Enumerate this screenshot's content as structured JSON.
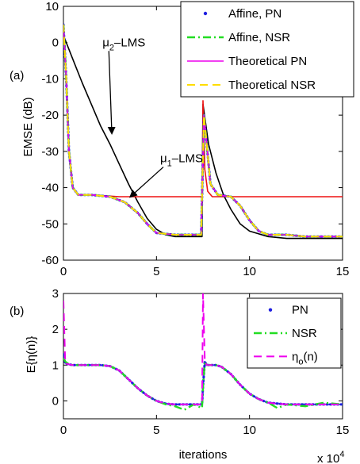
{
  "chart_data": [
    {
      "type": "line",
      "panel_label": "(a)",
      "xlabel": "",
      "ylabel": "EMSE (dB)",
      "xlim": [
        0,
        15
      ],
      "ylim": [
        -60,
        10
      ],
      "xticks": [
        0,
        5,
        10,
        15
      ],
      "yticks": [
        10,
        0,
        -10,
        -20,
        -30,
        -40,
        -50,
        -60
      ],
      "xtick_labels": [
        "0",
        "5",
        "10",
        "15"
      ],
      "ytick_labels": [
        "10",
        "0",
        "-10",
        "-20",
        "-30",
        "-40",
        "-50",
        "-60"
      ],
      "legend_position": "top-right",
      "series": [
        {
          "name": "Affine, PN",
          "color": "#1f1fe0",
          "style": "dots",
          "x": [
            0,
            0.15,
            0.3,
            0.5,
            0.8,
            1.5,
            2.5,
            3.3,
            4.0,
            4.5,
            5.0,
            6.0,
            7.0,
            7.4,
            7.55,
            7.7,
            7.9,
            8.3,
            9.0,
            9.5,
            10.0,
            10.5,
            11.0,
            12,
            13,
            14,
            15
          ],
          "y": [
            5,
            -10,
            -30,
            -40,
            -42,
            -42,
            -42.5,
            -44,
            -47,
            -50,
            -52.5,
            -53,
            -53,
            -53,
            -20,
            -28,
            -39,
            -42,
            -42.5,
            -45,
            -49,
            -52,
            -53,
            -53,
            -53.5,
            -53.5,
            -53.5
          ]
        },
        {
          "name": "Affine, NSR",
          "color": "#22dd22",
          "style": "dash-dot",
          "x": [
            0,
            0.15,
            0.3,
            0.5,
            0.8,
            1.5,
            2.5,
            3.3,
            4.0,
            4.5,
            5.0,
            6.0,
            7.0,
            7.4,
            7.55,
            7.7,
            7.9,
            8.3,
            9.0,
            9.5,
            10.0,
            10.5,
            11.0,
            12,
            13,
            14,
            15
          ],
          "y": [
            5,
            -10,
            -30,
            -40,
            -42,
            -42,
            -42.5,
            -44,
            -47,
            -50,
            -52.5,
            -53,
            -53,
            -53,
            -20,
            -28,
            -39,
            -42,
            -42.5,
            -45,
            -49,
            -52,
            -53,
            -53,
            -53.5,
            -53.5,
            -53.5
          ]
        },
        {
          "name": "Theoretical PN",
          "color": "#ee00ee",
          "style": "solid",
          "x": [
            0,
            0.15,
            0.3,
            0.5,
            0.8,
            1.5,
            2.5,
            3.3,
            4.0,
            4.5,
            5.0,
            6.0,
            7.0,
            7.4,
            7.55,
            7.7,
            7.9,
            8.3,
            9.0,
            9.5,
            10.0,
            10.5,
            11.0,
            12,
            13,
            14,
            15
          ],
          "y": [
            5,
            -10,
            -30,
            -40,
            -42,
            -42,
            -42.5,
            -44,
            -47,
            -50,
            -52.5,
            -53,
            -53,
            -53,
            -20,
            -28,
            -39,
            -42,
            -42.5,
            -45,
            -49,
            -52,
            -53,
            -53,
            -53.5,
            -53.5,
            -53.5
          ]
        },
        {
          "name": "Theoretical NSR",
          "color": "#ffdd00",
          "style": "dashed",
          "x": [
            0,
            0.15,
            0.3,
            0.5,
            0.8,
            1.5,
            2.5,
            3.3,
            4.0,
            4.5,
            5.0,
            6.0,
            7.0,
            7.4,
            7.55,
            7.7,
            7.9,
            8.3,
            9.0,
            9.5,
            10.0,
            10.5,
            11.0,
            12,
            13,
            14,
            15
          ],
          "y": [
            5,
            -10,
            -30,
            -40,
            -42,
            -42,
            -42.5,
            -44,
            -47,
            -50,
            -52.5,
            -53,
            -53,
            -53,
            -20,
            -28,
            -39,
            -42,
            -42.5,
            -45,
            -49,
            -52,
            -53,
            -53,
            -53.5,
            -53.5,
            -53.5
          ]
        },
        {
          "color": "#ee1111",
          "style": "solid",
          "x": [
            0,
            0.15,
            0.3,
            0.5,
            0.8,
            1.5,
            3,
            5,
            7,
            7.45,
            7.5,
            7.6,
            7.75,
            8.0,
            8.5,
            10,
            12,
            15
          ],
          "y": [
            5,
            -10,
            -30,
            -40,
            -42,
            -42,
            -42.5,
            -42.5,
            -42.5,
            -42.5,
            -16,
            -35,
            -41,
            -42.5,
            -42.5,
            -42.5,
            -42.5,
            -42.5
          ]
        },
        {
          "color": "#000000",
          "style": "solid",
          "x": [
            0,
            0.5,
            1,
            1.5,
            2,
            2.5,
            3,
            3.5,
            4,
            4.5,
            5,
            5.5,
            6,
            7,
            7.45,
            7.5,
            7.8,
            8.2,
            8.6,
            9.0,
            9.5,
            10,
            11,
            12,
            15
          ],
          "y": [
            2,
            -4.5,
            -11,
            -17,
            -23,
            -28,
            -33.5,
            -39,
            -44,
            -48.5,
            -51.5,
            -53,
            -53.5,
            -53.5,
            -53.5,
            -17,
            -28,
            -36,
            -42,
            -46,
            -50,
            -52,
            -53.5,
            -54,
            -54
          ]
        }
      ],
      "annotations": [
        {
          "text_main": "μ",
          "text_sub": "2",
          "text_rest": "–LMS",
          "x": 2.1,
          "y": -1.0,
          "arrow_to": [
            2.6,
            -25
          ]
        },
        {
          "text_main": "μ",
          "text_sub": "1",
          "text_rest": "–LMS",
          "x": 5.2,
          "y": -33,
          "arrow_to": [
            3.6,
            -42.5
          ]
        }
      ]
    },
    {
      "type": "line",
      "panel_label": "(b)",
      "xlabel": "iterations",
      "ylabel": "E{η(n)}",
      "x_multiplier_base": "x 10",
      "x_multiplier_exp": "4",
      "xlim": [
        0,
        15
      ],
      "ylim": [
        -0.5,
        3
      ],
      "xticks": [
        0,
        5,
        10,
        15
      ],
      "yticks": [
        3,
        2,
        1,
        0
      ],
      "xtick_labels": [
        "0",
        "5",
        "10",
        "15"
      ],
      "ytick_labels": [
        "3",
        "2",
        "1",
        "0"
      ],
      "legend_position": "top-right",
      "series": [
        {
          "name": "PN",
          "color": "#1f1fe0",
          "style": "dots",
          "x": [
            0,
            0.1,
            0.3,
            0.5,
            1,
            2,
            2.5,
            3,
            3.5,
            4,
            4.5,
            5,
            5.5,
            6,
            7,
            7.45,
            7.5,
            7.6,
            7.7,
            8.2,
            8.5,
            9,
            9.5,
            10,
            10.5,
            11,
            12,
            15
          ],
          "y": [
            1.3,
            1.05,
            1.02,
            1.0,
            1.0,
            1.0,
            0.97,
            0.85,
            0.6,
            0.35,
            0.15,
            0.0,
            -0.08,
            -0.1,
            -0.1,
            -0.1,
            0.4,
            1.1,
            1.0,
            1.0,
            0.95,
            0.75,
            0.45,
            0.2,
            0.05,
            -0.05,
            -0.1,
            -0.1
          ]
        },
        {
          "name": "NSR",
          "color": "#22dd22",
          "style": "dash-dot",
          "x": [
            0,
            0.1,
            0.3,
            0.5,
            1,
            2,
            2.5,
            3,
            3.5,
            4,
            4.5,
            5,
            5.5,
            6,
            6.5,
            7,
            7.45,
            7.5,
            7.6,
            7.7,
            8.2,
            8.5,
            9,
            9.5,
            10,
            10.5,
            11,
            11.5,
            12,
            13,
            14,
            15
          ],
          "y": [
            1.2,
            1.1,
            1.02,
            1.0,
            1.0,
            1.0,
            0.97,
            0.85,
            0.6,
            0.35,
            0.15,
            0.0,
            -0.1,
            -0.15,
            -0.25,
            -0.1,
            -0.2,
            0.4,
            1.1,
            1.0,
            1.0,
            0.95,
            0.75,
            0.45,
            0.2,
            0.05,
            -0.05,
            -0.2,
            -0.1,
            -0.15,
            -0.05,
            -0.1
          ]
        },
        {
          "name": "η",
          "name_sub": "o",
          "name_rest": "(n)",
          "color": "#ee00ee",
          "style": "dashed",
          "x": [
            0,
            0.1,
            0.3,
            0.5,
            1,
            2,
            2.5,
            3,
            3.5,
            4,
            4.5,
            5,
            5.5,
            6,
            7,
            7.45,
            7.5,
            7.6,
            7.7,
            8.2,
            8.5,
            9,
            9.5,
            10,
            10.5,
            11,
            12,
            15
          ],
          "y": [
            2.8,
            1.05,
            1.02,
            1.0,
            1.0,
            1.0,
            0.97,
            0.85,
            0.6,
            0.35,
            0.15,
            0.0,
            -0.08,
            -0.1,
            -0.1,
            -0.1,
            3.0,
            1.1,
            1.0,
            1.0,
            0.95,
            0.75,
            0.45,
            0.2,
            0.05,
            -0.05,
            -0.1,
            -0.1
          ]
        }
      ]
    }
  ]
}
